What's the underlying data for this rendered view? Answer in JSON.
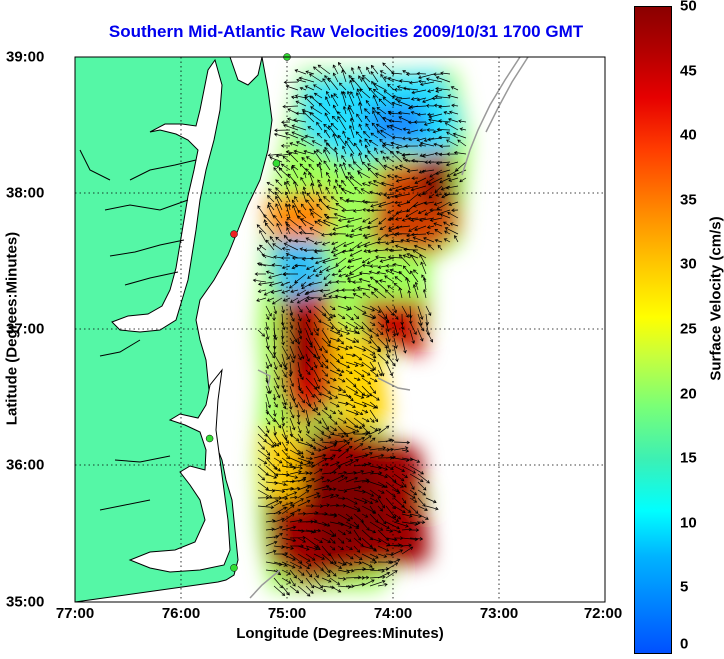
{
  "title": "Southern Mid-Atlantic Raw Velocities 2009/10/31 1700 GMT",
  "x_axis": {
    "label": "Longitude (Degrees:Minutes)",
    "ticks": [
      "77:00",
      "76:00",
      "75:00",
      "74:00",
      "73:00",
      "72:00"
    ]
  },
  "y_axis": {
    "label": "Latitude (Degrees:Minutes)",
    "ticks": [
      "39:00",
      "38:00",
      "37:00",
      "36:00",
      "35:00"
    ]
  },
  "colorbar": {
    "label": "Surface Velocity (cm/s)",
    "ticks": [
      "50",
      "45",
      "40",
      "35",
      "30",
      "25",
      "20",
      "15",
      "10",
      "5",
      "0"
    ],
    "range": [
      0,
      50
    ]
  },
  "colors": {
    "land": "#55f7a6",
    "title": "#0000ee",
    "coastline": "#000000",
    "station": "#33dd33",
    "station_alert": "#ee2222"
  },
  "map": {
    "extent": {
      "lon": [
        -77,
        -72
      ],
      "lat": [
        35,
        39
      ]
    },
    "grid": true
  },
  "stations": [
    {
      "lon": -75.0,
      "lat": 39.0,
      "status": "active"
    },
    {
      "lon": -75.1,
      "lat": 38.22,
      "status": "active"
    },
    {
      "lon": -75.5,
      "lat": 37.7,
      "status": "alert"
    },
    {
      "lon": -75.73,
      "lat": 36.2,
      "status": "active"
    },
    {
      "lon": -75.5,
      "lat": 35.25,
      "status": "active"
    }
  ]
}
